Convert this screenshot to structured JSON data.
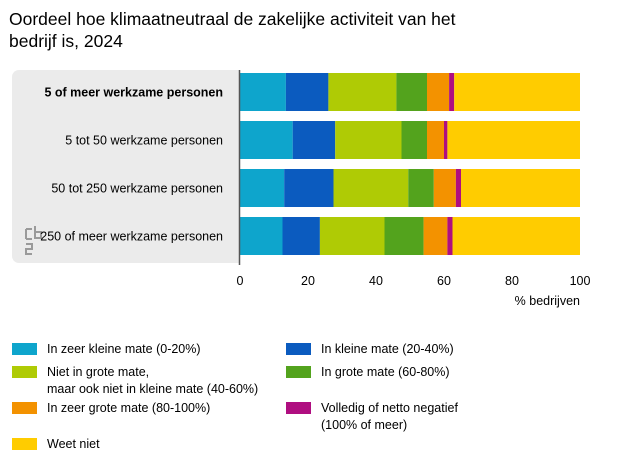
{
  "chart_data": {
    "type": "bar",
    "orientation": "horizontal",
    "stacked": true,
    "title": "Oordeel hoe klimaatneutraal de zakelijke activiteit van het bedrijf is, 2024",
    "xlabel": "% bedrijven",
    "xlim": [
      0,
      100
    ],
    "xticks": [
      0,
      20,
      40,
      60,
      80,
      100
    ],
    "categories": [
      "5 of meer werkzame personen",
      "5 tot 50 werkzame personen",
      "50 tot 250 werkzame personen",
      "250 of meer werkzame personen"
    ],
    "highlighted_category": "5 of meer werkzame personen",
    "series": [
      {
        "name": "In zeer kleine mate (0-20%)",
        "color": "#0ea5cc",
        "values": [
          13.5,
          15.5,
          13.0,
          12.5
        ]
      },
      {
        "name": "In kleine mate (20-40%)",
        "color": "#0b5bbf",
        "values": [
          12.5,
          12.5,
          14.5,
          11.0
        ]
      },
      {
        "name": "Niet in grote mate,\nmaar ook niet in kleine mate (40-60%)",
        "color": "#afcb05",
        "values": [
          20.0,
          19.5,
          22.0,
          19.0
        ]
      },
      {
        "name": "In grote mate (60-80%)",
        "color": "#53a31d",
        "values": [
          9.0,
          7.5,
          7.5,
          11.5
        ]
      },
      {
        "name": "In zeer grote mate (80-100%)",
        "color": "#f39200",
        "values": [
          6.5,
          5.0,
          6.5,
          7.0
        ]
      },
      {
        "name": "Volledig of netto negatief\n(100% of meer)",
        "color": "#af0e80",
        "values": [
          1.5,
          1.0,
          1.5,
          1.5
        ]
      },
      {
        "name": "Weet niet",
        "color": "#ffcc00",
        "values": [
          37.0,
          39.0,
          35.0,
          37.5
        ]
      }
    ],
    "grid": false,
    "legend_position": "bottom"
  }
}
